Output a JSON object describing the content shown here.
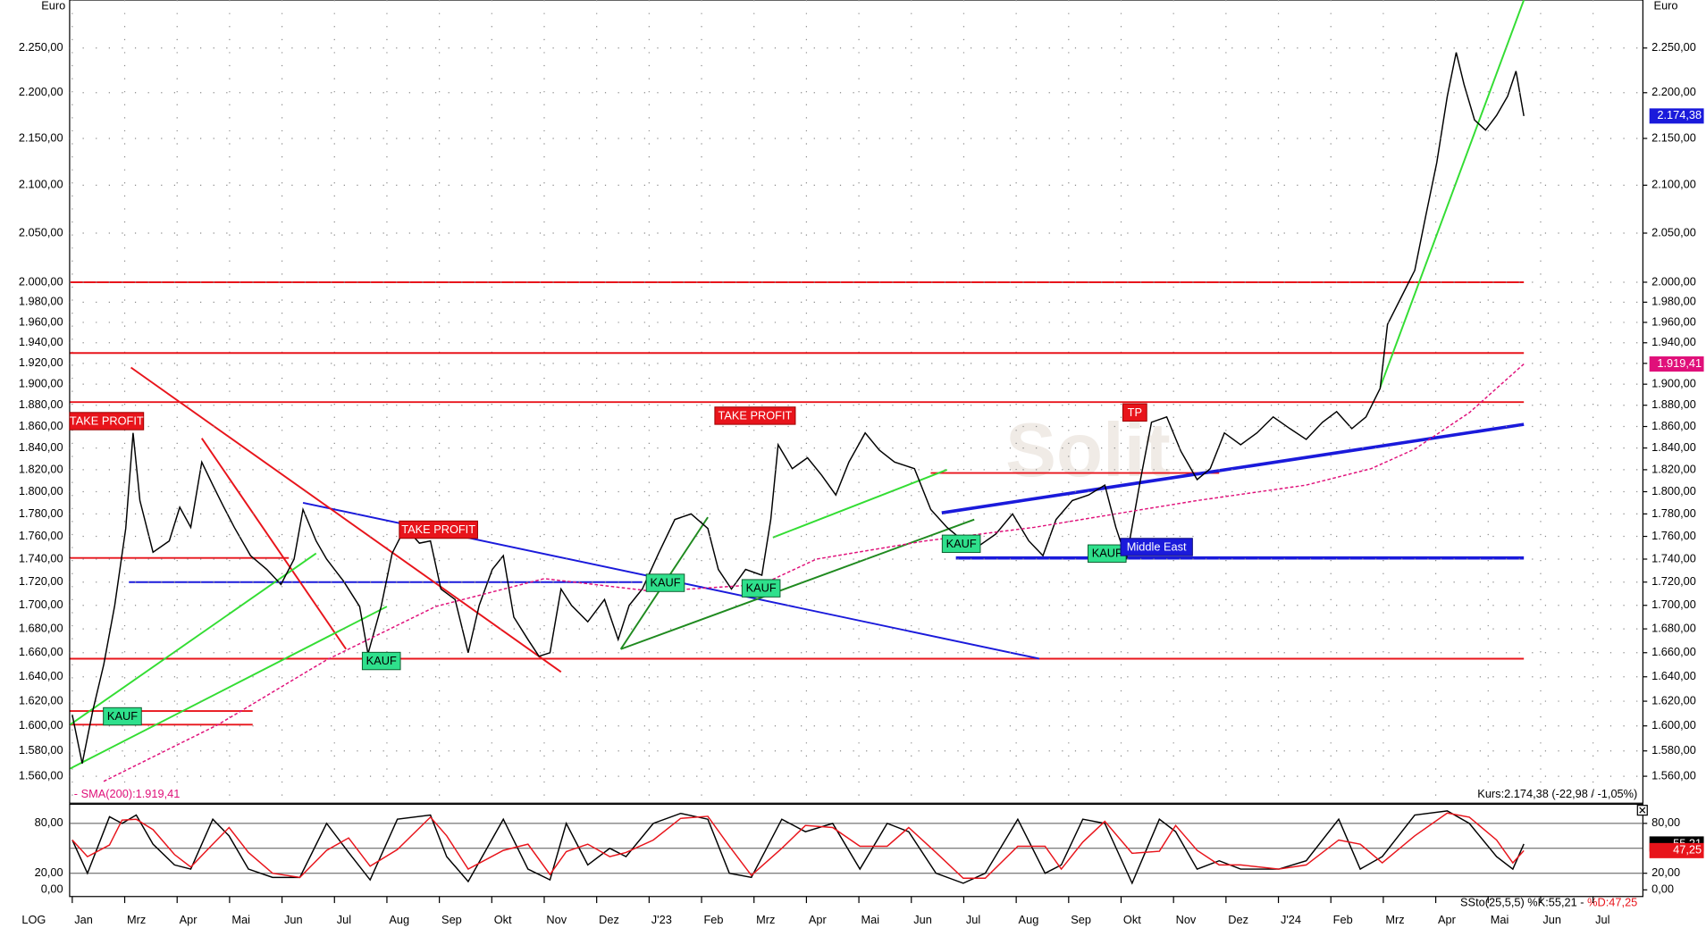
{
  "chart_data": [
    {
      "type": "line",
      "y_unit": "Euro",
      "log_scale": true,
      "grid": true,
      "scale_mode": "LOG",
      "watermark": "Solit",
      "xlim": [
        -0.05,
        29.95
      ],
      "xticks": [
        {
          "value": 0,
          "label": "Jan"
        },
        {
          "value": 1,
          "label": "Mrz"
        },
        {
          "value": 2,
          "label": "Apr"
        },
        {
          "value": 3,
          "label": "Mai"
        },
        {
          "value": 4,
          "label": "Jun"
        },
        {
          "value": 5,
          "label": "Jul"
        },
        {
          "value": 6,
          "label": "Aug"
        },
        {
          "value": 7,
          "label": "Sep"
        },
        {
          "value": 8,
          "label": "Okt"
        },
        {
          "value": 9,
          "label": "Nov"
        },
        {
          "value": 10,
          "label": "Dez"
        },
        {
          "value": 11,
          "label": "J'23"
        },
        {
          "value": 12,
          "label": "Feb"
        },
        {
          "value": 13,
          "label": "Mrz"
        },
        {
          "value": 14,
          "label": "Apr"
        },
        {
          "value": 15,
          "label": "Mai"
        },
        {
          "value": 16,
          "label": "Jun"
        },
        {
          "value": 17,
          "label": "Jul"
        },
        {
          "value": 18,
          "label": "Aug"
        },
        {
          "value": 19,
          "label": "Sep"
        },
        {
          "value": 20,
          "label": "Okt"
        },
        {
          "value": 21,
          "label": "Nov"
        },
        {
          "value": 22,
          "label": "Dez"
        },
        {
          "value": 23,
          "label": "J'24"
        },
        {
          "value": 24,
          "label": "Feb"
        },
        {
          "value": 25,
          "label": "Mrz"
        },
        {
          "value": 26,
          "label": "Apr"
        },
        {
          "value": 27,
          "label": "Mai"
        },
        {
          "value": 28,
          "label": "Jun"
        },
        {
          "value": 29,
          "label": "Jul"
        }
      ],
      "ylim": [
        1539,
        2305
      ],
      "yticks": [
        {
          "value": 1560,
          "label": "1.560,00"
        },
        {
          "value": 1580,
          "label": "1.580,00"
        },
        {
          "value": 1600,
          "label": "1.600,00"
        },
        {
          "value": 1620,
          "label": "1.620,00"
        },
        {
          "value": 1640,
          "label": "1.640,00"
        },
        {
          "value": 1660,
          "label": "1.660,00"
        },
        {
          "value": 1680,
          "label": "1.680,00"
        },
        {
          "value": 1700,
          "label": "1.700,00"
        },
        {
          "value": 1720,
          "label": "1.720,00"
        },
        {
          "value": 1740,
          "label": "1.740,00"
        },
        {
          "value": 1760,
          "label": "1.760,00"
        },
        {
          "value": 1780,
          "label": "1.780,00"
        },
        {
          "value": 1800,
          "label": "1.800,00"
        },
        {
          "value": 1820,
          "label": "1.820,00"
        },
        {
          "value": 1840,
          "label": "1.840,00"
        },
        {
          "value": 1860,
          "label": "1.860,00"
        },
        {
          "value": 1880,
          "label": "1.880,00"
        },
        {
          "value": 1900,
          "label": "1.900,00"
        },
        {
          "value": 1920,
          "label": "1.920,00"
        },
        {
          "value": 1940,
          "label": "1.940,00"
        },
        {
          "value": 1960,
          "label": "1.960,00"
        },
        {
          "value": 1980,
          "label": "1.980,00"
        },
        {
          "value": 2000,
          "label": "2.000,00"
        },
        {
          "value": 2050,
          "label": "2.050,00"
        },
        {
          "value": 2100,
          "label": "2.100,00"
        },
        {
          "value": 2150,
          "label": "2.150,00"
        },
        {
          "value": 2200,
          "label": "2.200,00"
        },
        {
          "value": 2250,
          "label": "2.250,00"
        }
      ],
      "series": [
        {
          "color": "#000000",
          "badge_color": "#1a1adb",
          "last_label": "2.174,38",
          "x": [
            0.0,
            0.19,
            0.39,
            0.6,
            0.81,
            1.02,
            1.16,
            1.29,
            1.54,
            1.85,
            2.05,
            2.26,
            2.47,
            2.68,
            2.88,
            3.09,
            3.4,
            3.71,
            3.98,
            4.23,
            4.4,
            4.65,
            4.85,
            5.17,
            5.48,
            5.64,
            5.89,
            6.1,
            6.35,
            6.62,
            6.83,
            7.03,
            7.3,
            7.55,
            7.76,
            8.01,
            8.22,
            8.42,
            8.69,
            8.9,
            9.11,
            9.32,
            9.52,
            9.83,
            10.15,
            10.41,
            10.62,
            10.87,
            11.18,
            11.49,
            11.8,
            12.12,
            12.32,
            12.57,
            12.84,
            13.15,
            13.32,
            13.46,
            13.73,
            14.02,
            14.29,
            14.56,
            14.81,
            15.12,
            15.39,
            15.68,
            16.06,
            16.37,
            16.68,
            16.99,
            17.3,
            17.61,
            17.93,
            18.24,
            18.51,
            18.76,
            19.07,
            19.38,
            19.69,
            19.9,
            20.1,
            20.37,
            20.58,
            20.87,
            21.14,
            21.45,
            21.7,
            21.97,
            22.28,
            22.59,
            22.9,
            23.22,
            23.53,
            23.84,
            24.11,
            24.4,
            24.67,
            24.94,
            25.08,
            25.39,
            25.6,
            25.81,
            26.02,
            26.22,
            26.39,
            26.54,
            26.74,
            26.95,
            27.16,
            27.37,
            27.53,
            27.68
          ],
          "values": [
            1609,
            1570,
            1612,
            1650,
            1700,
            1767,
            1854,
            1792,
            1746,
            1756,
            1786,
            1768,
            1827,
            1806,
            1787,
            1768,
            1743,
            1731,
            1718,
            1740,
            1784,
            1756,
            1740,
            1721,
            1699,
            1659,
            1699,
            1745,
            1768,
            1754,
            1756,
            1714,
            1705,
            1660,
            1700,
            1731,
            1743,
            1690,
            1671,
            1657,
            1660,
            1714,
            1700,
            1686,
            1705,
            1671,
            1700,
            1714,
            1745,
            1775,
            1780,
            1767,
            1731,
            1714,
            1731,
            1726,
            1775,
            1843,
            1821,
            1831,
            1815,
            1797,
            1827,
            1854,
            1838,
            1827,
            1821,
            1784,
            1768,
            1756,
            1752,
            1762,
            1780,
            1756,
            1743,
            1775,
            1792,
            1797,
            1806,
            1768,
            1740,
            1811,
            1864,
            1869,
            1837,
            1811,
            1821,
            1854,
            1843,
            1854,
            1869,
            1858,
            1848,
            1864,
            1874,
            1858,
            1869,
            1896,
            1958,
            1990,
            2012,
            2068,
            2124,
            2196,
            2245,
            2209,
            2170,
            2159,
            2175,
            2196,
            2224,
            2174.38
          ]
        },
        {
          "name": "SMA(200)",
          "color": "#e0107a",
          "dashed": true,
          "badge_color": "#e0107a",
          "last_label": "1.919,41",
          "x": [
            0.6,
            2.78,
            4.85,
            6.93,
            9.0,
            11.08,
            13.15,
            14.19,
            16.27,
            18.34,
            20.41,
            21.45,
            23.53,
            24.77,
            25.6,
            26.64,
            27.68
          ],
          "values": [
            1556,
            1601,
            1654,
            1699,
            1723,
            1712,
            1718,
            1740,
            1756,
            1768,
            1784,
            1792,
            1806,
            1821,
            1839,
            1873,
            1919.41
          ]
        }
      ],
      "lines": [
        {
          "color": "#e8141b",
          "x": [
            -0.04,
            27.68
          ],
          "values": [
            2000,
            2000
          ]
        },
        {
          "color": "#e8141b",
          "x": [
            -0.04,
            27.68
          ],
          "values": [
            1930,
            1930
          ]
        },
        {
          "color": "#e8141b",
          "x": [
            -0.04,
            27.68
          ],
          "values": [
            1883,
            1883
          ]
        },
        {
          "color": "#e8141b",
          "x": [
            -0.04,
            27.68
          ],
          "values": [
            1655,
            1655
          ]
        },
        {
          "color": "#e8141b",
          "x": [
            -0.04,
            4.13
          ],
          "values": [
            1741,
            1741
          ]
        },
        {
          "color": "#e8141b",
          "x": [
            -0.04,
            3.44
          ],
          "values": [
            1601,
            1601
          ]
        },
        {
          "color": "#e8141b",
          "x": [
            -0.04,
            3.44
          ],
          "values": [
            1612,
            1612
          ]
        },
        {
          "color": "#e8141b",
          "x": [
            16.37,
            21.87
          ],
          "values": [
            1817,
            1817
          ]
        },
        {
          "color": "#1a1adb",
          "x": [
            1.08,
            10.87
          ],
          "values": [
            1720,
            1720
          ]
        },
        {
          "color": "#1a1adb",
          "x": [
            16.85,
            27.68
          ],
          "values": [
            1741,
            1741
          ]
        },
        {
          "color": "#1a1adb",
          "x": [
            4.4,
            18.44
          ],
          "values": [
            1790,
            1655
          ]
        },
        {
          "color": "#1a1adb",
          "x": [
            16.58,
            27.68
          ],
          "values": [
            1781,
            1862
          ]
        },
        {
          "color": "#e8141b",
          "x": [
            1.12,
            9.32
          ],
          "values": [
            1916,
            1644
          ]
        },
        {
          "color": "#e8141b",
          "x": [
            2.47,
            5.22
          ],
          "values": [
            1849,
            1663
          ]
        },
        {
          "color": "#33dd33",
          "x": [
            -0.04,
            6.0
          ],
          "values": [
            1566,
            1699
          ]
        },
        {
          "color": "#33dd33",
          "x": [
            -0.04,
            4.65
          ],
          "values": [
            1601,
            1745
          ]
        },
        {
          "color": "#33dd33",
          "x": [
            13.36,
            16.68
          ],
          "values": [
            1759,
            1820
          ]
        },
        {
          "color": "#33dd33",
          "x": [
            24.94,
            27.68
          ],
          "values": [
            1897,
            2305
          ]
        },
        {
          "color": "#1f8a1f",
          "x": [
            10.46,
            12.12
          ],
          "values": [
            1663,
            1777
          ]
        },
        {
          "color": "#1f8a1f",
          "x": [
            10.46,
            17.2
          ],
          "values": [
            1663,
            1775
          ]
        }
      ],
      "annotations": [
        {
          "text": "KAUF",
          "kind": "buy"
        },
        {
          "text": "KAUF",
          "kind": "buy"
        },
        {
          "text": "KAUF",
          "kind": "buy"
        },
        {
          "text": "KAUF",
          "kind": "buy"
        },
        {
          "text": "KAUF",
          "kind": "buy"
        },
        {
          "text": "KAUF",
          "kind": "buy"
        },
        {
          "text": "TAKE PROFIT",
          "kind": "sell"
        },
        {
          "text": "TAKE PROFIT",
          "kind": "sell"
        },
        {
          "text": "TAKE PROFIT",
          "kind": "sell"
        },
        {
          "text": "TP",
          "kind": "sell"
        },
        {
          "text": "Middle East",
          "kind": "info"
        }
      ],
      "sma_legend": "- SMA(200):1.919,41",
      "quote": "Kurs:2.174,38 (-22,98 / -1,05%)"
    },
    {
      "type": "line",
      "xlim": [
        -0.05,
        29.95
      ],
      "ylim": [
        -8,
        103
      ],
      "yticks": [
        {
          "value": 80,
          "label": "80,00"
        },
        {
          "value": 20,
          "label": "20,00"
        },
        {
          "value": 0,
          "label": "0,00"
        }
      ],
      "hlines": [
        80,
        50,
        20
      ],
      "series": [
        {
          "color": "#000000",
          "badge_color": "#000000",
          "last_label": "55,21",
          "x": [
            0,
            0.29,
            0.71,
            0.95,
            1.22,
            1.54,
            1.95,
            2.26,
            2.68,
            2.99,
            3.36,
            3.82,
            4.34,
            4.85,
            5.27,
            5.68,
            6.2,
            6.83,
            7.14,
            7.55,
            8.22,
            8.69,
            9.11,
            9.42,
            9.83,
            10.25,
            10.56,
            11.08,
            11.6,
            12.12,
            12.53,
            12.95,
            13.53,
            13.98,
            14.5,
            15.02,
            15.54,
            15.95,
            16.47,
            16.99,
            17.41,
            18.03,
            18.55,
            18.86,
            19.27,
            19.69,
            20.21,
            20.73,
            21.04,
            21.45,
            21.87,
            22.28,
            23.01,
            23.53,
            24.15,
            24.56,
            24.98,
            25.6,
            26.22,
            26.64,
            27.16,
            27.47,
            27.68
          ],
          "values": [
            60,
            20,
            88,
            80,
            90,
            55,
            30,
            25,
            85,
            65,
            25,
            15,
            15,
            80,
            45,
            12,
            85,
            90,
            40,
            10,
            85,
            25,
            12,
            80,
            30,
            50,
            40,
            80,
            92,
            85,
            20,
            15,
            85,
            70,
            80,
            25,
            80,
            70,
            20,
            8,
            20,
            85,
            20,
            30,
            85,
            80,
            8,
            85,
            70,
            25,
            35,
            25,
            25,
            35,
            85,
            25,
            40,
            90,
            95,
            80,
            40,
            25,
            55.21
          ]
        },
        {
          "color": "#e8141b",
          "badge_color": "#e8141b",
          "last_label": "47,25",
          "x": [
            0,
            0.29,
            0.71,
            0.95,
            1.22,
            1.54,
            1.95,
            2.26,
            2.68,
            2.99,
            3.36,
            3.82,
            4.34,
            4.85,
            5.27,
            5.68,
            6.2,
            6.83,
            7.14,
            7.55,
            8.22,
            8.69,
            9.11,
            9.42,
            9.83,
            10.25,
            10.56,
            11.08,
            11.6,
            12.12,
            12.53,
            12.95,
            13.53,
            13.98,
            14.5,
            15.02,
            15.54,
            15.95,
            16.47,
            16.99,
            17.41,
            18.03,
            18.55,
            18.86,
            19.27,
            19.69,
            20.21,
            20.73,
            21.04,
            21.45,
            21.87,
            22.28,
            23.01,
            23.53,
            24.15,
            24.56,
            24.98,
            25.6,
            26.22,
            26.64,
            27.16,
            27.47,
            27.68
          ],
          "values": [
            60,
            40,
            54,
            84,
            85,
            72.5,
            42.5,
            27.5,
            55,
            75,
            45,
            20,
            15,
            47.5,
            62.5,
            28.5,
            48.5,
            87.5,
            65,
            25,
            47.5,
            55,
            18.5,
            46,
            55,
            40,
            45,
            60,
            86,
            88.5,
            52.5,
            17.5,
            50,
            77.5,
            75,
            52.5,
            52.5,
            75,
            45,
            14,
            14,
            52.5,
            52.5,
            25,
            57.5,
            82.5,
            44,
            46.5,
            77.5,
            47.5,
            30,
            30,
            25,
            30,
            60,
            55,
            32.5,
            65,
            92.5,
            87.5,
            60,
            32.5,
            47.25
          ]
        }
      ],
      "legend": "SSto(25,5,5) %K:55,21 -",
      "legend_d": "%D:47,25"
    }
  ]
}
